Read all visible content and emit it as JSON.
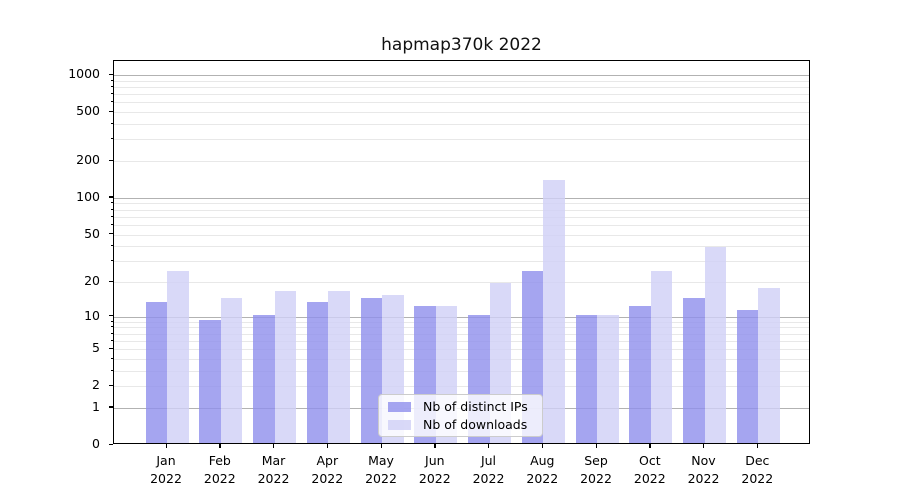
{
  "title": "hapmap370k 2022",
  "chart_data": {
    "type": "bar",
    "title": "hapmap370k 2022",
    "categories": [
      "Jan",
      "Feb",
      "Mar",
      "Apr",
      "May",
      "Jun",
      "Jul",
      "Aug",
      "Sep",
      "Oct",
      "Nov",
      "Dec"
    ],
    "x_year_label": "2022",
    "series": [
      {
        "name": "Nb of distinct IPs",
        "color": "#8f8fec",
        "alpha": 0.8,
        "values": [
          13,
          9,
          10,
          13,
          14,
          12,
          10,
          24,
          10,
          12,
          14,
          11
        ]
      },
      {
        "name": "Nb of downloads",
        "color": "#cfcff6",
        "alpha": 0.8,
        "values": [
          24,
          14,
          16,
          16,
          15,
          12,
          19,
          136,
          10,
          24,
          38,
          17
        ]
      }
    ],
    "y_scale": "log1p",
    "ylim": [
      0,
      1300
    ],
    "y_labeled_ticks": [
      0,
      1,
      2,
      5,
      10,
      20,
      50,
      100,
      200,
      500,
      1000
    ],
    "y_major_gridlines": [
      1,
      10,
      100,
      1000
    ],
    "y_minor_gridlines": [
      2,
      3,
      4,
      5,
      6,
      7,
      8,
      9,
      20,
      30,
      40,
      50,
      60,
      70,
      80,
      90,
      200,
      300,
      400,
      500,
      600,
      700,
      800,
      900
    ],
    "grid": "on",
    "legend_position": "lower-center",
    "colors": {
      "major_grid": "#b2b2b2",
      "minor_grid": "#e8e8e8",
      "axis": "#000000",
      "bar_dark_rendered": "#a5a5f0",
      "bar_light_rendered": "#d9d9f8"
    }
  }
}
